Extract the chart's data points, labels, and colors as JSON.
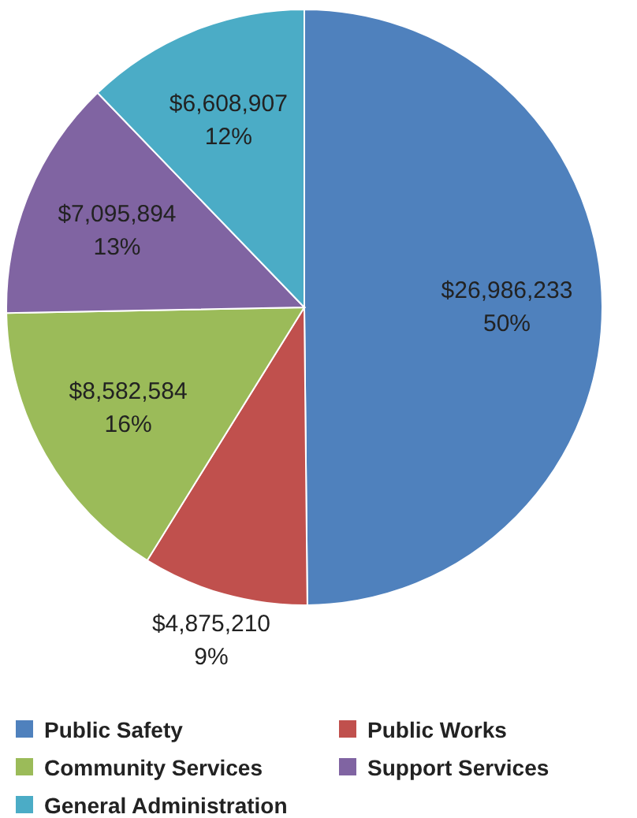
{
  "chart_data": {
    "type": "pie",
    "categories": [
      "Public Safety",
      "Public Works",
      "Community Services",
      "Support Services",
      "General Administration"
    ],
    "values": [
      26986233,
      4875210,
      8582584,
      7095894,
      6608907
    ],
    "colors": [
      "#4f81bd",
      "#c0504d",
      "#9bbb59",
      "#8064a2",
      "#4bacc6"
    ],
    "value_labels": [
      "$26,986,233\n50%",
      "$4,875,210\n9%",
      "$8,582,584\n16%",
      "$7,095,894\n13%",
      "$6,608,907\n12%"
    ],
    "legend": "bottom"
  }
}
